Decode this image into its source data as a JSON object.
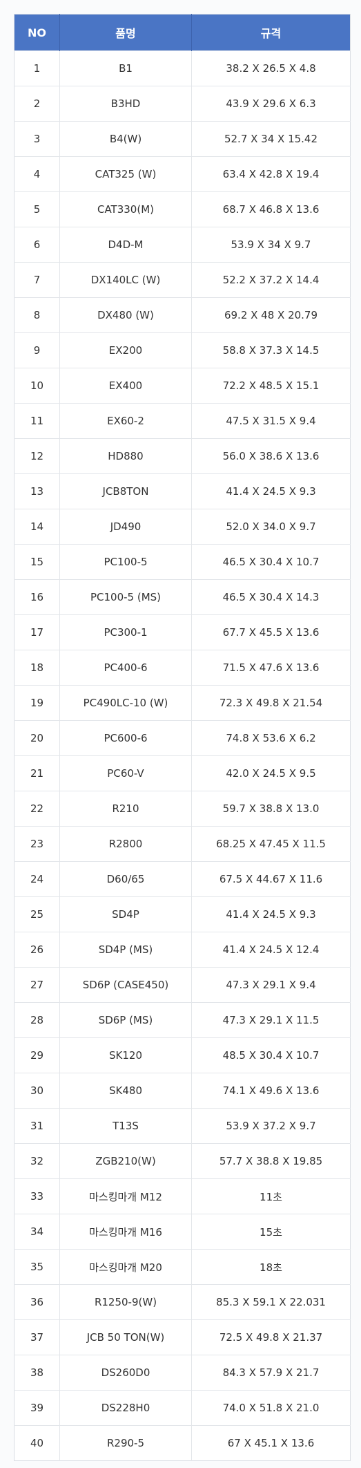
{
  "headers": {
    "no": "NO",
    "name": "품명",
    "spec": "규격"
  },
  "rows": [
    {
      "no": "1",
      "name": "B1",
      "spec": "38.2 X 26.5 X 4.8"
    },
    {
      "no": "2",
      "name": "B3HD",
      "spec": "43.9 X 29.6 X 6.3"
    },
    {
      "no": "3",
      "name": "B4(W)",
      "spec": "52.7 X 34 X 15.42"
    },
    {
      "no": "4",
      "name": "CAT325 (W)",
      "spec": "63.4 X 42.8 X 19.4"
    },
    {
      "no": "5",
      "name": "CAT330(M)",
      "spec": "68.7 X 46.8 X 13.6"
    },
    {
      "no": "6",
      "name": "D4D-M",
      "spec": "53.9 X 34 X 9.7"
    },
    {
      "no": "7",
      "name": "DX140LC (W)",
      "spec": "52.2 X 37.2 X 14.4"
    },
    {
      "no": "8",
      "name": "DX480 (W)",
      "spec": "69.2 X 48 X 20.79"
    },
    {
      "no": "9",
      "name": "EX200",
      "spec": "58.8 X 37.3 X 14.5"
    },
    {
      "no": "10",
      "name": "EX400",
      "spec": "72.2 X 48.5 X 15.1"
    },
    {
      "no": "11",
      "name": "EX60-2",
      "spec": "47.5 X 31.5 X 9.4"
    },
    {
      "no": "12",
      "name": "HD880",
      "spec": "56.0 X 38.6 X 13.6"
    },
    {
      "no": "13",
      "name": "JCB8TON",
      "spec": "41.4 X 24.5 X 9.3"
    },
    {
      "no": "14",
      "name": "JD490",
      "spec": "52.0 X 34.0 X 9.7"
    },
    {
      "no": "15",
      "name": "PC100-5",
      "spec": "46.5 X 30.4 X 10.7"
    },
    {
      "no": "16",
      "name": "PC100-5 (MS)",
      "spec": "46.5 X 30.4 X 14.3"
    },
    {
      "no": "17",
      "name": "PC300-1",
      "spec": "67.7 X 45.5 X 13.6"
    },
    {
      "no": "18",
      "name": "PC400-6",
      "spec": "71.5 X 47.6 X 13.6"
    },
    {
      "no": "19",
      "name": "PC490LC-10 (W)",
      "spec": "72.3 X 49.8 X 21.54"
    },
    {
      "no": "20",
      "name": "PC600-6",
      "spec": "74.8 X 53.6 X 6.2"
    },
    {
      "no": "21",
      "name": "PC60-V",
      "spec": "42.0 X 24.5 X 9.5"
    },
    {
      "no": "22",
      "name": "R210",
      "spec": "59.7 X 38.8 X 13.0"
    },
    {
      "no": "23",
      "name": "R2800",
      "spec": "68.25 X 47.45 X 11.5"
    },
    {
      "no": "24",
      "name": "D60/65",
      "spec": "67.5 X 44.67 X 11.6"
    },
    {
      "no": "25",
      "name": "SD4P",
      "spec": "41.4 X 24.5 X 9.3"
    },
    {
      "no": "26",
      "name": "SD4P (MS)",
      "spec": "41.4 X 24.5 X 12.4"
    },
    {
      "no": "27",
      "name": "SD6P (CASE450)",
      "spec": "47.3 X 29.1 X 9.4"
    },
    {
      "no": "28",
      "name": "SD6P (MS)",
      "spec": "47.3 X 29.1 X 11.5"
    },
    {
      "no": "29",
      "name": "SK120",
      "spec": "48.5 X 30.4 X 10.7"
    },
    {
      "no": "30",
      "name": "SK480",
      "spec": "74.1 X 49.6 X 13.6"
    },
    {
      "no": "31",
      "name": "T13S",
      "spec": "53.9 X 37.2 X 9.7"
    },
    {
      "no": "32",
      "name": "ZGB210(W)",
      "spec": "57.7 X 38.8 X 19.85"
    },
    {
      "no": "33",
      "name": "마스킹마개 M12",
      "spec": "11초"
    },
    {
      "no": "34",
      "name": "마스킹마개 M16",
      "spec": "15초"
    },
    {
      "no": "35",
      "name": "마스킹마개 M20",
      "spec": "18초"
    },
    {
      "no": "36",
      "name": "R1250-9(W)",
      "spec": "85.3 X 59.1 X 22.031"
    },
    {
      "no": "37",
      "name": "JCB 50 TON(W)",
      "spec": "72.5 X 49.8 X 21.37"
    },
    {
      "no": "38",
      "name": "DS260D0",
      "spec": "84.3 X 57.9 X 21.7"
    },
    {
      "no": "39",
      "name": "DS228H0",
      "spec": "74.0 X 51.8 X 21.0"
    },
    {
      "no": "40",
      "name": "R290-5",
      "spec": "67 X 45.1 X 13.6"
    }
  ]
}
